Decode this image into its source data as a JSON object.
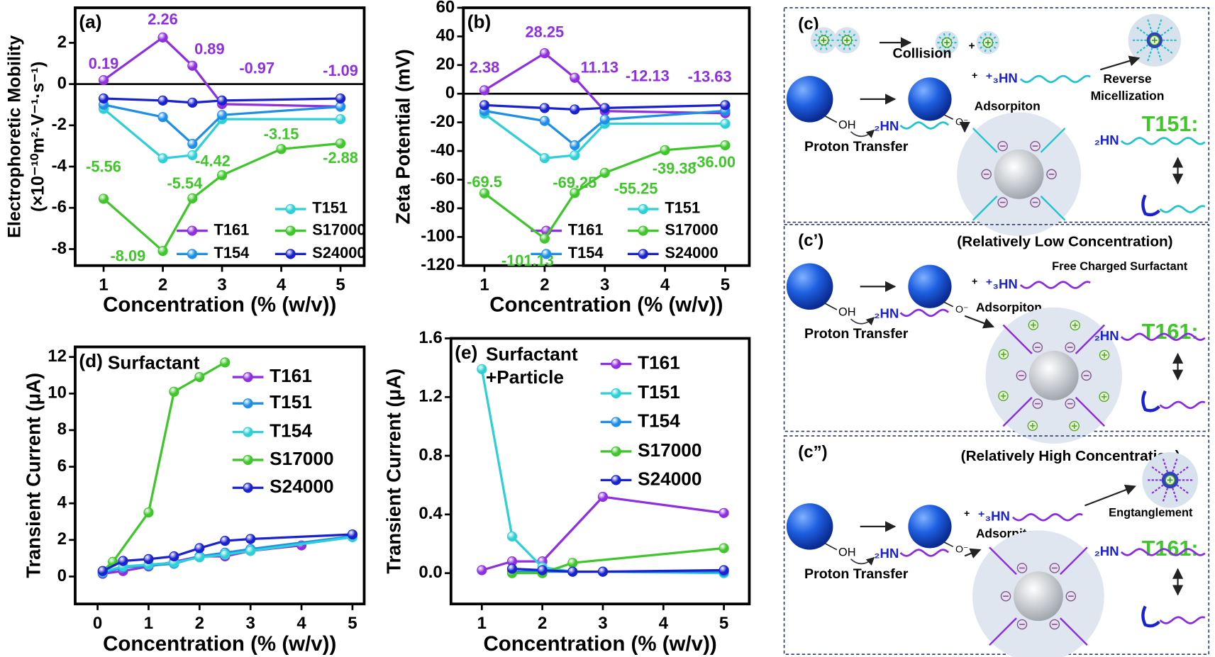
{
  "chart_data": [
    {
      "type": "line",
      "label": "(a)",
      "ylabel": [
        "Electrophoretic Mobility",
        "(×10⁻¹⁰m²·V⁻¹·s⁻¹)"
      ],
      "xlabel": "Concentration (% (w/v))",
      "xlim": [
        0.52,
        5.4
      ],
      "ylim": [
        -8.8,
        3.7
      ],
      "xticks": [
        1,
        2,
        3,
        4,
        5
      ],
      "yticks": [
        -8,
        -6,
        -4,
        -2,
        0,
        2
      ],
      "zero_line": true,
      "series": [
        {
          "name": "T151",
          "color": "#2cd0d6",
          "x": [
            1,
            2,
            2.5,
            3,
            5
          ],
          "values": [
            -1.2,
            -3.6,
            -3.45,
            -1.7,
            -1.7
          ]
        },
        {
          "name": "T161",
          "color": "#8e2fe0",
          "x": [
            1,
            2,
            2.5,
            3,
            5
          ],
          "values": [
            0.19,
            2.26,
            0.89,
            -0.97,
            -1.09
          ],
          "data_labels": true
        },
        {
          "name": "S17000",
          "color": "#3ec62a",
          "x": [
            1,
            2,
            2.5,
            3,
            4,
            5
          ],
          "values": [
            -5.56,
            -8.09,
            -5.54,
            -4.42,
            -3.15,
            -2.88
          ],
          "data_labels": true
        },
        {
          "name": "T154",
          "color": "#1e8fe8",
          "x": [
            1,
            2,
            2.5,
            3,
            5
          ],
          "values": [
            -1.0,
            -1.6,
            -2.9,
            -1.5,
            -1.1
          ]
        },
        {
          "name": "S24000",
          "color": "#1a22d0",
          "x": [
            1,
            2,
            2.5,
            3,
            5
          ],
          "values": [
            -0.7,
            -0.8,
            -0.9,
            -0.8,
            -0.7
          ]
        }
      ]
    },
    {
      "type": "line",
      "label": "(b)",
      "ylabel": [
        "Zeta Potential (mV)"
      ],
      "xlabel": "Concentration (% (w/v))",
      "xlim": [
        0.65,
        5.4
      ],
      "ylim": [
        -120,
        60
      ],
      "xticks": [
        1,
        2,
        3,
        4,
        5
      ],
      "yticks": [
        -120,
        -100,
        -80,
        -60,
        -40,
        -20,
        0,
        20,
        40,
        60
      ],
      "zero_line": true,
      "series": [
        {
          "name": "T151",
          "color": "#2cd0d6",
          "x": [
            1,
            2,
            2.5,
            3,
            5
          ],
          "values": [
            -14,
            -45,
            -43,
            -21,
            -21
          ]
        },
        {
          "name": "T161",
          "color": "#8e2fe0",
          "x": [
            1,
            2,
            2.5,
            3,
            5
          ],
          "values": [
            2.38,
            28.25,
            11.13,
            -12.13,
            -13.63
          ],
          "data_labels": true
        },
        {
          "name": "S17000",
          "color": "#3ec62a",
          "x": [
            1,
            2,
            2.5,
            3,
            4,
            5
          ],
          "values": [
            -69.5,
            -101.13,
            -69.25,
            -55.25,
            -39.38,
            -36
          ],
          "value_labels": [
            "-69.5",
            "-101.13",
            "-69.25",
            "-55.25",
            "-39.38",
            "-36.00"
          ],
          "data_labels": true
        },
        {
          "name": "T154",
          "color": "#1e8fe8",
          "x": [
            1,
            2,
            2.5,
            3,
            5
          ],
          "values": [
            -12,
            -19,
            -36,
            -18,
            -12
          ]
        },
        {
          "name": "S24000",
          "color": "#1a22d0",
          "x": [
            1,
            2,
            2.5,
            3,
            5
          ],
          "values": [
            -8,
            -10,
            -11,
            -10,
            -8
          ]
        }
      ]
    },
    {
      "type": "line",
      "label": "(d)",
      "annotation": [
        "Surfactant"
      ],
      "ylabel": [
        "Transient Current (μA)"
      ],
      "xlabel": "Concentration (% (w/v))",
      "xlim": [
        -0.44,
        5.23
      ],
      "ylim": [
        -1.5,
        12.55
      ],
      "xticks": [
        0,
        1,
        2,
        3,
        4,
        5
      ],
      "yticks": [
        0,
        2,
        4,
        6,
        8,
        10,
        12
      ],
      "series": [
        {
          "name": "T161",
          "color": "#8e2fe0",
          "x": [
            0.1,
            0.5,
            1,
            1.5,
            2,
            2.5,
            3,
            4
          ],
          "values": [
            0.15,
            0.3,
            0.55,
            0.8,
            1.1,
            1.1,
            1.4,
            1.7
          ]
        },
        {
          "name": "T151",
          "color": "#1e8fe8",
          "x": [
            0.1,
            0.5,
            1,
            1.5,
            2,
            2.5,
            3,
            5
          ],
          "values": [
            0.2,
            0.5,
            0.6,
            0.7,
            1.1,
            1.3,
            1.5,
            2.2
          ]
        },
        {
          "name": "T154",
          "color": "#2cd0d6",
          "x": [
            0.1,
            0.5,
            1,
            1.5,
            2,
            2.5,
            3,
            5
          ],
          "values": [
            0.25,
            0.55,
            0.65,
            0.75,
            1.05,
            1.2,
            1.4,
            2.15
          ]
        },
        {
          "name": "S17000",
          "color": "#3ec62a",
          "x": [
            0.1,
            0.3,
            1,
            1.5,
            2,
            2.5
          ],
          "values": [
            0.3,
            0.8,
            3.5,
            10.1,
            10.9,
            11.7
          ]
        },
        {
          "name": "S24000",
          "color": "#1a22d0",
          "x": [
            0.1,
            0.5,
            1,
            1.5,
            2,
            2.5,
            3,
            5
          ],
          "values": [
            0.3,
            0.85,
            0.95,
            1.1,
            1.55,
            1.95,
            2.05,
            2.3
          ]
        }
      ]
    },
    {
      "type": "line",
      "label": "(e)",
      "annotation": [
        "Surfactant",
        "+Particle"
      ],
      "ylabel": [
        "Transient Current (μA)"
      ],
      "xlabel": "Concentration (% (w/v))",
      "xlim": [
        0.49,
        5.42
      ],
      "ylim": [
        -0.21,
        1.6
      ],
      "xticks": [
        1,
        2,
        3,
        4,
        5
      ],
      "yticks": [
        {
          "value": 0,
          "label": "0.0"
        },
        0.4,
        0.8,
        1.2,
        1.6
      ],
      "series": [
        {
          "name": "T161",
          "color": "#8e2fe0",
          "x": [
            1,
            1.5,
            2,
            3,
            5
          ],
          "values": [
            0.02,
            0.08,
            0.08,
            0.52,
            0.41
          ]
        },
        {
          "name": "T151",
          "color": "#2cd0d6",
          "x": [
            1,
            1.5,
            2,
            2.5,
            3,
            5
          ],
          "values": [
            1.39,
            0.25,
            0.04,
            0.01,
            0.01,
            0
          ]
        },
        {
          "name": "T154",
          "color": "#1e8fe8",
          "x": [
            1.5,
            2,
            2.5,
            3,
            5
          ],
          "values": [
            0.01,
            0.01,
            0.01,
            0.01,
            0.01
          ]
        },
        {
          "name": "S17000",
          "color": "#3ec62a",
          "x": [
            1.5,
            2,
            2.5,
            5
          ],
          "values": [
            0,
            0,
            0.07,
            0.17
          ]
        },
        {
          "name": "S24000",
          "color": "#1a22d0",
          "x": [
            1.5,
            2,
            2.5,
            3,
            5
          ],
          "values": [
            0.03,
            0.02,
            0.01,
            0.01,
            0.02
          ]
        }
      ]
    }
  ],
  "schemes": [
    {
      "label": "(c)",
      "note": "Collision",
      "micelle_plus": "+",
      "note2": [
        "Reverse",
        "Micellization"
      ],
      "plus": "+",
      "ion": "⁺₃HN",
      "adsorption": "Adsorpiton",
      "oh": "OH",
      "amine": "₂HN",
      "oxide": "O⁻",
      "transfer": "Proton Transfer",
      "name": "T151:",
      "name_amine": "₂HN"
    },
    {
      "label": "(c’)",
      "heading": "(Relatively Low Concentration)",
      "note": "Free Charged Surfactant",
      "plus": "+",
      "ion": "⁺₃HN",
      "adsorption": "Adsorpiton",
      "oh": "OH",
      "amine": "₂HN",
      "oxide": "O⁻",
      "transfer": "Proton Transfer",
      "name": "T161:",
      "name_amine": "₂HN"
    },
    {
      "label": "(c”)",
      "heading": "(Relatively High Concentration)",
      "note": "Engtanglement",
      "plus": "+",
      "ion": "⁺₃HN",
      "adsorption": "Adsorpiton",
      "oh": "OH",
      "amine": "₂HN",
      "oxide": "O⁻",
      "transfer": "Proton Transfer",
      "name": "T161:",
      "name_amine": "₂HN"
    }
  ]
}
